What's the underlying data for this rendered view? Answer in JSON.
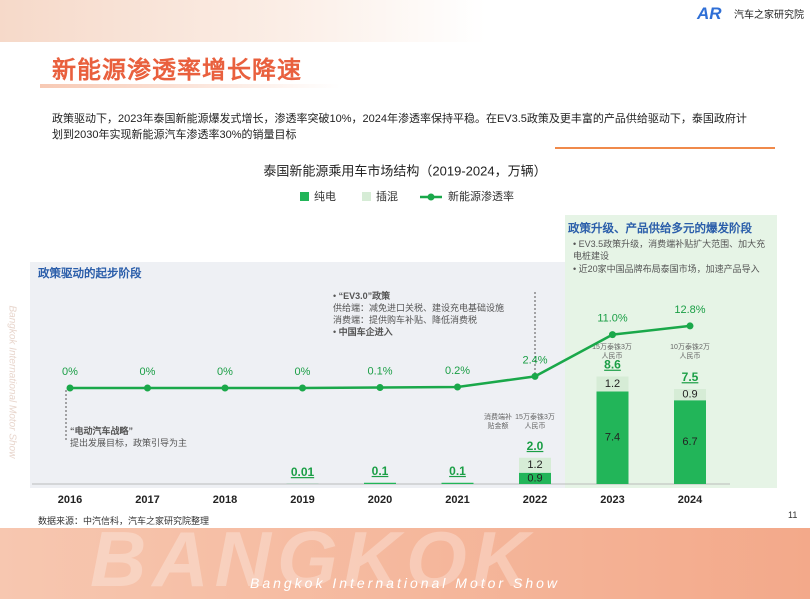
{
  "slide": {
    "logo": "汽车之家研究院",
    "title": "新能源渗透率增长降速",
    "summary": "政策驱动下，2023年泰国新能源爆发式增长，渗透率突破10%，2024年渗透率保持平稳。在EV3.5政策及更丰富的产品供给驱动下，泰国政府计划到2030年实现新能源汽车渗透率30%的销量目标",
    "source": "数据来源：中汽信科，汽车之家研究院整理",
    "page": "11",
    "footer_big": "BANGKOK",
    "footer": "Bangkok International Motor Show",
    "watermark": "Bangkok International Motor Show"
  },
  "chart_data": {
    "type": "bar",
    "title": "泰国新能源乘用车市场结构（2019-2024，万辆）",
    "categories": [
      "2016",
      "2017",
      "2018",
      "2019",
      "2020",
      "2021",
      "2022",
      "2023",
      "2024"
    ],
    "series": [
      {
        "name": "纯电",
        "type": "bar",
        "color": "#22b559",
        "values": [
          null,
          null,
          null,
          0.01,
          0.1,
          0.1,
          0.9,
          7.4,
          6.7
        ]
      },
      {
        "name": "插混",
        "type": "bar",
        "color": "#d6ecd6",
        "values": [
          null,
          null,
          null,
          null,
          null,
          null,
          1.2,
          1.2,
          0.9
        ]
      },
      {
        "name": "新能源渗透率",
        "type": "line",
        "axis": "y2",
        "color": "#1aa84a",
        "values": [
          0,
          0,
          0,
          0,
          0.1,
          0.2,
          2.4,
          11.0,
          12.8
        ],
        "value_labels": [
          "0%",
          "0%",
          "0%",
          "0%",
          "0.1%",
          "0.2%",
          "2.4%",
          "11.0%",
          "12.8%"
        ]
      }
    ],
    "totals": {
      "values": [
        null,
        null,
        null,
        0.01,
        0.1,
        0.1,
        2.0,
        8.6,
        7.5
      ],
      "value_labels": [
        null,
        null,
        null,
        "0.01",
        "0.1",
        "0.1",
        "2.0",
        "8.6",
        "7.5"
      ]
    },
    "annotations": {
      "left_phase": "政策驱动的起步阶段",
      "right_phase": {
        "title": "政策升级、产品供给多元的爆发阶段",
        "bullets": [
          "EV3.5政策升级，消费端补贴扩大范围、加大充电桩建设",
          "近20家中国品牌布局泰国市场，加速产品导入"
        ]
      },
      "ev30": [
        "“EV3.0”政策",
        "供给端：减免进口关税、建设充电基础设施",
        "消费端：提供购车补贴、降低消费税",
        "中国车企进入"
      ],
      "strategy": [
        "“电动汽车战略”",
        "提出发展目标，政策引导为主"
      ],
      "subsidy_label": "消费端补贴金额",
      "subsidy": [
        "15万泰铢3万人民币",
        "15万泰铢3万人民币",
        "10万泰铢2万人民币"
      ]
    }
  }
}
